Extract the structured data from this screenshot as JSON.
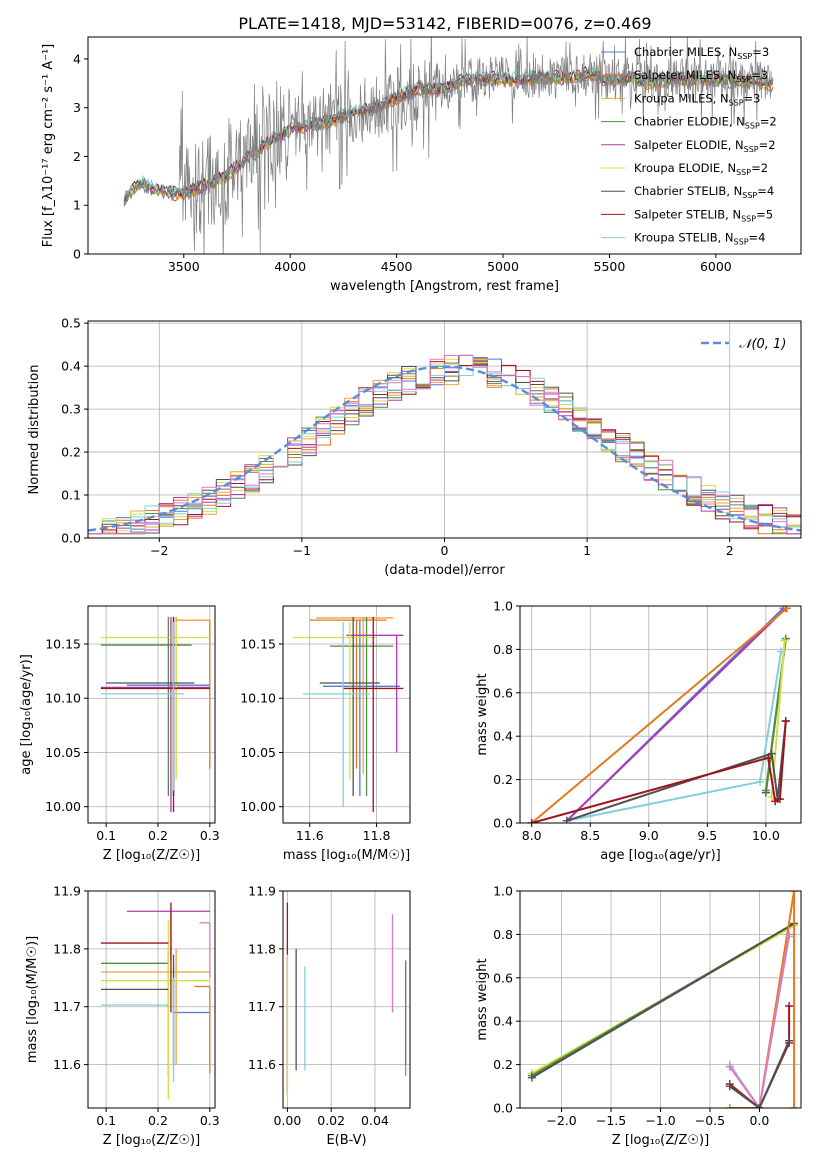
{
  "title": "PLATE=1418, MJD=53142, FIBERID=0076, z=0.469",
  "colors": [
    "#4f7bd6",
    "#e07a1f",
    "#f0a23c",
    "#4f8f3f",
    "#b03ab0",
    "#d4e040",
    "#505050",
    "#a0141e",
    "#7fd0d8"
  ],
  "chart_data": [
    {
      "id": "spectrum",
      "type": "line",
      "xlabel": "wavelength [Angstrom, rest frame]",
      "ylabel": "Flux [f_λ10⁻¹⁷ erg cm⁻² s⁻¹ A⁻¹]",
      "xlim": [
        3050,
        6400
      ],
      "ylim": [
        0,
        4.45
      ],
      "xticks": [
        3500,
        4000,
        4500,
        5000,
        5500,
        6000
      ],
      "yticks": [
        0,
        1,
        2,
        3,
        4
      ],
      "grid": false,
      "legend_position": "top-right",
      "data_series": {
        "name": "data",
        "color": "#808080",
        "start": 3220,
        "x": [
          3220,
          3260,
          3300,
          3350,
          3400,
          3450,
          3500,
          3600,
          3700,
          3800,
          3900,
          4000,
          4100,
          4200,
          4300,
          4400,
          4500,
          4600,
          4700,
          4800,
          4900,
          5000,
          5100,
          5200,
          5300,
          5400,
          5500,
          5600,
          5700,
          5800,
          5900,
          6000,
          6100,
          6200,
          6270
        ],
        "y": [
          1.15,
          1.3,
          1.45,
          1.35,
          1.3,
          1.25,
          1.25,
          1.4,
          1.6,
          2.0,
          2.3,
          2.55,
          2.65,
          2.75,
          2.9,
          3.0,
          3.2,
          3.4,
          3.35,
          3.55,
          3.6,
          3.6,
          3.55,
          3.65,
          3.6,
          3.7,
          3.55,
          3.6,
          3.5,
          3.6,
          3.55,
          3.6,
          3.55,
          3.55,
          3.45
        ]
      },
      "series": [
        {
          "name": "Chabrier MILES, N_SSP=3",
          "label_main": "Chabrier MILES, N",
          "label_sub": "SSP",
          "label_end": "=3",
          "color": "#4f7bd6"
        },
        {
          "name": "Salpeter MILES, N_SSP=3",
          "label_main": "Salpeter MILES, N",
          "label_sub": "SSP",
          "label_end": "=3",
          "color": "#e07a1f"
        },
        {
          "name": "Kroupa MILES, N_SSP=3",
          "label_main": "Kroupa MILES, N",
          "label_sub": "SSP",
          "label_end": "=3",
          "color": "#f0a23c"
        },
        {
          "name": "Chabrier ELODIE, N_SSP=2",
          "label_main": "Chabrier ELODIE, N",
          "label_sub": "SSP",
          "label_end": "=2",
          "color": "#4f8f3f"
        },
        {
          "name": "Salpeter ELODIE, N_SSP=2",
          "label_main": "Salpeter ELODIE, N",
          "label_sub": "SSP",
          "label_end": "=2",
          "color": "#b03ab0"
        },
        {
          "name": "Kroupa ELODIE, N_SSP=2",
          "label_main": "Kroupa ELODIE, N",
          "label_sub": "SSP",
          "label_end": "=2",
          "color": "#d4e040"
        },
        {
          "name": "Chabrier STELIB, N_SSP=4",
          "label_main": "Chabrier STELIB, N",
          "label_sub": "SSP",
          "label_end": "=4",
          "color": "#505050"
        },
        {
          "name": "Salpeter STELIB, N_SSP=5",
          "label_main": "Salpeter STELIB, N",
          "label_sub": "SSP",
          "label_end": "=5",
          "color": "#a0141e"
        },
        {
          "name": "Kroupa STELIB, N_SSP=4",
          "label_main": "Kroupa STELIB, N",
          "label_sub": "SSP",
          "label_end": "=4",
          "color": "#7fd0d8"
        }
      ]
    },
    {
      "id": "residuals",
      "type": "line",
      "xlabel": "(data-model)/error",
      "ylabel": "Normed distribution",
      "xlim": [
        -2.5,
        2.5
      ],
      "ylim": [
        0,
        0.505
      ],
      "xticks": [
        -2,
        -1,
        0,
        1,
        2
      ],
      "yticks": [
        0.0,
        0.1,
        0.2,
        0.3,
        0.4,
        0.5
      ],
      "grid": true,
      "legend_position": "top-right",
      "legend": "𝒩(0, 1)",
      "gaussian": {
        "mu": 0,
        "sigma": 1,
        "color": "#5b8bd9"
      }
    },
    {
      "id": "age_vs_Z",
      "type": "scatter",
      "xlabel": "Z [log₁₀(Z/Z☉)]",
      "ylabel": "age  [log₁₀(age/yr)]",
      "xlim": [
        0.065,
        0.31
      ],
      "ylim": [
        9.985,
        10.185
      ],
      "xticks": [
        0.1,
        0.2,
        0.3
      ],
      "yticks": [
        10.0,
        10.05,
        10.1,
        10.15
      ],
      "grid": true,
      "points": [
        {
          "x": 0.23,
          "y": 10.112,
          "xerr": [
            0.14,
            0.3
          ],
          "yerr": [
            10.01,
            10.172
          ],
          "color": "#4f7bd6"
        },
        {
          "x": 0.3,
          "y": 10.172,
          "xerr": [
            0.235,
            0.3
          ],
          "yerr": [
            10.035,
            10.172
          ],
          "color": "#e07a1f"
        },
        {
          "x": 0.235,
          "y": 10.172,
          "xerr": [
            0.24,
            0.3
          ],
          "yerr": [
            10.03,
            10.175
          ],
          "color": "#f0a23c"
        },
        {
          "x": 0.22,
          "y": 10.149,
          "xerr": [
            0.09,
            0.265
          ],
          "yerr": [
            10.01,
            10.175
          ],
          "color": "#4f8f3f"
        },
        {
          "x": 0.225,
          "y": 10.11,
          "xerr": [
            0.09,
            0.3
          ],
          "yerr": [
            9.995,
            10.175
          ],
          "color": "#b03ab0"
        },
        {
          "x": 0.235,
          "y": 10.156,
          "xerr": [
            0.09,
            0.3
          ],
          "yerr": [
            10.025,
            10.17
          ],
          "color": "#d4e040"
        },
        {
          "x": 0.23,
          "y": 10.114,
          "xerr": [
            0.1,
            0.27
          ],
          "yerr": [
            10.01,
            10.175
          ],
          "color": "#505050"
        },
        {
          "x": 0.23,
          "y": 10.109,
          "xerr": [
            0.09,
            0.3
          ],
          "yerr": [
            9.995,
            10.175
          ],
          "color": "#a0141e"
        },
        {
          "x": 0.23,
          "y": 10.104,
          "xerr": [
            0.09,
            0.25
          ],
          "yerr": [
            10.015,
            10.17
          ],
          "color": "#7fd0d8"
        }
      ]
    },
    {
      "id": "age_vs_mass",
      "type": "scatter",
      "xlabel": "mass [log₁₀(M/M☉)]",
      "ylabel": "",
      "xlim": [
        11.52,
        11.9
      ],
      "ylim": [
        9.985,
        10.185
      ],
      "xticks": [
        11.6,
        11.8
      ],
      "yticks": [
        10.0,
        10.05,
        10.1,
        10.15
      ],
      "grid": true,
      "points": [
        {
          "x": 11.75,
          "y": 10.111,
          "xerr": [
            11.64,
            11.87
          ],
          "yerr": [
            10.01,
            10.172
          ],
          "color": "#4f7bd6"
        },
        {
          "x": 11.74,
          "y": 10.172,
          "xerr": [
            11.6,
            11.83
          ],
          "yerr": [
            10.035,
            10.172
          ],
          "color": "#e07a1f"
        },
        {
          "x": 11.76,
          "y": 10.174,
          "xerr": [
            11.62,
            11.85
          ],
          "yerr": [
            10.03,
            10.174
          ],
          "color": "#f0a23c"
        },
        {
          "x": 11.77,
          "y": 10.148,
          "xerr": [
            11.66,
            11.85
          ],
          "yerr": [
            10.01,
            10.175
          ],
          "color": "#4f8f3f"
        },
        {
          "x": 11.86,
          "y": 10.158,
          "xerr": [
            11.71,
            11.88
          ],
          "yerr": [
            10.05,
            10.158
          ],
          "color": "#b03ab0"
        },
        {
          "x": 11.72,
          "y": 10.156,
          "xerr": [
            11.55,
            11.8
          ],
          "yerr": [
            10.025,
            10.17
          ],
          "color": "#d4e040"
        },
        {
          "x": 11.73,
          "y": 10.114,
          "xerr": [
            11.63,
            11.81
          ],
          "yerr": [
            10.01,
            10.175
          ],
          "color": "#505050"
        },
        {
          "x": 11.79,
          "y": 10.109,
          "xerr": [
            11.7,
            11.88
          ],
          "yerr": [
            9.995,
            10.175
          ],
          "color": "#a0141e"
        },
        {
          "x": 11.7,
          "y": 10.104,
          "xerr": [
            11.58,
            11.78
          ],
          "yerr": [
            10.0,
            10.17
          ],
          "color": "#7fd0d8"
        }
      ]
    },
    {
      "id": "massweight_vs_age",
      "type": "line",
      "xlabel": "age  [log₁₀(age/yr)]",
      "ylabel": "mass weight",
      "xlim": [
        7.9,
        10.3
      ],
      "ylim": [
        0,
        1.0
      ],
      "xticks": [
        8.0,
        8.5,
        9.0,
        9.5,
        10.0
      ],
      "yticks": [
        0.0,
        0.2,
        0.4,
        0.6,
        0.8,
        1.0
      ],
      "grid": true,
      "series": [
        {
          "color": "#4f7bd6",
          "x": [
            8.3,
            10.15
          ],
          "y": [
            0.01,
            0.99
          ]
        },
        {
          "color": "#b03ab0",
          "x": [
            8.3,
            10.17
          ],
          "y": [
            0.01,
            0.99
          ]
        },
        {
          "color": "#e07a1f",
          "x": [
            8.0,
            10.18
          ],
          "y": [
            0.0,
            0.99
          ]
        },
        {
          "color": "#505050",
          "x": [
            10.0,
            10.17
          ],
          "y": [
            0.14,
            0.85
          ]
        },
        {
          "color": "#4f8f3f",
          "x": [
            10.0,
            10.17
          ],
          "y": [
            0.15,
            0.85
          ]
        },
        {
          "color": "#d4e040",
          "x": [
            10.05,
            10.16
          ],
          "y": [
            0.12,
            0.84
          ]
        },
        {
          "color": "#7fd0d8",
          "x": [
            8.3,
            9.95,
            10.13
          ],
          "y": [
            0.01,
            0.19,
            0.79
          ]
        },
        {
          "color": "#505050",
          "x": [
            8.3,
            10.05,
            10.1,
            10.17
          ],
          "y": [
            0.01,
            0.32,
            0.11,
            0.47
          ]
        },
        {
          "color": "#a0141e",
          "x": [
            8.0,
            10.02,
            10.08,
            10.12,
            10.17
          ],
          "y": [
            0.0,
            0.3,
            0.1,
            0.11,
            0.47
          ]
        }
      ]
    },
    {
      "id": "mass_vs_Z",
      "type": "scatter",
      "xlabel": "Z [log₁₀(Z/Z☉)]",
      "ylabel": "mass [log₁₀(M/M☉)]",
      "xlim": [
        0.065,
        0.31
      ],
      "ylim": [
        11.525,
        11.9
      ],
      "xticks": [
        0.1,
        0.2,
        0.3
      ],
      "yticks": [
        11.6,
        11.7,
        11.8,
        11.9
      ],
      "grid": true,
      "points": [
        {
          "x": 0.23,
          "y": 11.69,
          "xerr": [
            0.23,
            0.3
          ],
          "yerr": [
            11.6,
            11.77
          ],
          "color": "#4f7bd6"
        },
        {
          "x": 0.3,
          "y": 11.735,
          "xerr": [
            0.27,
            0.3
          ],
          "yerr": [
            11.585,
            11.735
          ],
          "color": "#e07a1f"
        },
        {
          "x": 0.235,
          "y": 11.76,
          "xerr": [
            0.09,
            0.3
          ],
          "yerr": [
            11.6,
            11.8
          ],
          "color": "#f0a23c"
        },
        {
          "x": 0.22,
          "y": 11.775,
          "xerr": [
            0.09,
            0.22
          ],
          "yerr": [
            11.58,
            11.8
          ],
          "color": "#4f8f3f"
        },
        {
          "x": 0.225,
          "y": 11.865,
          "xerr": [
            0.14,
            0.3
          ],
          "yerr": [
            11.78,
            11.87
          ],
          "color": "#b03ab0"
        },
        {
          "x": 0.22,
          "y": 11.745,
          "xerr": [
            0.09,
            0.3
          ],
          "yerr": [
            11.54,
            11.85
          ],
          "color": "#d4e040"
        },
        {
          "x": 0.23,
          "y": 11.73,
          "xerr": [
            0.09,
            0.22
          ],
          "yerr": [
            11.6,
            11.79
          ],
          "color": "#505050"
        },
        {
          "x": 0.225,
          "y": 11.81,
          "xerr": [
            0.09,
            0.22
          ],
          "yerr": [
            11.69,
            11.88
          ],
          "color": "#a0141e"
        },
        {
          "x": 0.23,
          "y": 11.703,
          "xerr": [
            0.09,
            0.22
          ],
          "yerr": [
            11.57,
            11.75
          ],
          "color": "#7fd0d8"
        },
        {
          "x": 0.3,
          "y": 11.845,
          "xerr": [
            0.28,
            0.3
          ],
          "yerr": [
            11.75,
            11.845
          ],
          "color": "#e377c2"
        }
      ]
    },
    {
      "id": "mass_vs_ebv",
      "type": "scatter",
      "xlabel": "E(B-V)",
      "ylabel": "",
      "xlim": [
        -0.002,
        0.056
      ],
      "ylim": [
        11.525,
        11.9
      ],
      "xticks": [
        0.0,
        0.02,
        0.04
      ],
      "yticks": [
        11.6,
        11.7,
        11.8,
        11.9
      ],
      "grid": true,
      "points": [
        {
          "x": 0.0,
          "y": 11.69,
          "yerr": [
            11.55,
            11.88
          ],
          "color": "#a0141e"
        },
        {
          "x": 0.0,
          "y": 11.7,
          "yerr": [
            11.54,
            11.79
          ],
          "color": "#d4e040"
        },
        {
          "x": 0.004,
          "y": 11.7,
          "yerr": [
            11.59,
            11.8
          ],
          "color": "#505050"
        },
        {
          "x": 0.008,
          "y": 11.68,
          "yerr": [
            11.59,
            11.77
          ],
          "color": "#7fd0d8"
        },
        {
          "x": 0.048,
          "y": 11.78,
          "yerr": [
            11.69,
            11.86
          ],
          "color": "#e377c2"
        },
        {
          "x": 0.054,
          "y": 11.7,
          "yerr": [
            11.58,
            11.78
          ],
          "color": "#e07a1f"
        },
        {
          "x": 0.054,
          "y": 11.74,
          "yerr": [
            11.6,
            11.78
          ],
          "color": "#4f7bd6"
        }
      ]
    },
    {
      "id": "massweight_vs_Z",
      "type": "line",
      "xlabel": "Z [log₁₀(Z/Z☉)]",
      "ylabel": "mass weight",
      "xlim": [
        -2.42,
        0.42
      ],
      "ylim": [
        0,
        1.0
      ],
      "xticks": [
        -2.0,
        -1.5,
        -1.0,
        -0.5,
        0.0
      ],
      "yticks": [
        0.0,
        0.2,
        0.4,
        0.6,
        0.8,
        1.0
      ],
      "grid": true,
      "series": [
        {
          "color": "#d4e040",
          "x": [
            -2.3,
            0.35
          ],
          "y": [
            0.16,
            0.84
          ]
        },
        {
          "color": "#4f8f3f",
          "x": [
            -2.3,
            0.35
          ],
          "y": [
            0.15,
            0.85
          ]
        },
        {
          "color": "#505050",
          "x": [
            -2.3,
            0.35
          ],
          "y": [
            0.14,
            0.85
          ]
        },
        {
          "color": "#e07a1f",
          "x": [
            -0.3,
            0.0,
            0.35,
            0.35
          ],
          "y": [
            0.0,
            0.0,
            1.0,
            0.0
          ]
        },
        {
          "color": "#7fd0d8",
          "x": [
            -0.3,
            0.0,
            0.3
          ],
          "y": [
            0.2,
            0.0,
            0.79
          ]
        },
        {
          "color": "#e377c2",
          "x": [
            -0.3,
            0.0,
            0.3
          ],
          "y": [
            0.19,
            0.0,
            0.8
          ]
        },
        {
          "color": "#a0141e",
          "x": [
            -0.3,
            0.0,
            0.3,
            0.3
          ],
          "y": [
            0.11,
            0.0,
            0.3,
            0.47
          ]
        },
        {
          "color": "#505050",
          "x": [
            -0.3,
            0.0,
            0.3
          ],
          "y": [
            0.1,
            0.0,
            0.31
          ]
        }
      ]
    }
  ]
}
